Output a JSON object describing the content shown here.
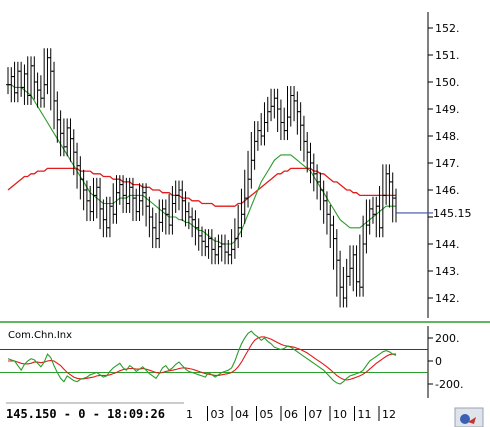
{
  "chart_data": [
    {
      "type": "ohlc",
      "current_value_label": "145.15",
      "y_ticks": [
        "152.",
        "151.",
        "150.",
        "149.",
        "148.",
        "147.",
        "146.",
        "145.",
        "144.",
        "143.",
        "142."
      ],
      "ylim": [
        141.3,
        152.6
      ],
      "x_ticks": [
        "1",
        "03",
        "04",
        "05",
        "06",
        "07",
        "10",
        "11",
        "12"
      ],
      "price_series": [
        149.9,
        150.2,
        149.6,
        150.4,
        149.8,
        150.3,
        149.5,
        150.6,
        150.0,
        149.7,
        149.4,
        149.9,
        150.9,
        150.4,
        149.3,
        148.6,
        148.1,
        147.6,
        148.3,
        147.9,
        147.4,
        146.9,
        146.4,
        146.0,
        145.6,
        145.2,
        145.8,
        146.1,
        145.3,
        144.9,
        144.6,
        145.4,
        145.1,
        145.9,
        146.2,
        145.8,
        145.5,
        146.1,
        145.7,
        145.2,
        145.6,
        145.9,
        145.4,
        145.0,
        144.6,
        144.2,
        144.8,
        145.3,
        145.1,
        144.7,
        145.5,
        145.8,
        146.0,
        145.6,
        145.2,
        145.0,
        144.9,
        144.6,
        144.3,
        144.1,
        143.9,
        144.2,
        143.8,
        143.6,
        143.9,
        144.0,
        143.7,
        143.6,
        143.8,
        144.2,
        144.6,
        145.1,
        145.7,
        146.4,
        147.1,
        147.8,
        148.2,
        148.0,
        148.5,
        148.9,
        149.1,
        149.4,
        149.0,
        148.5,
        148.2,
        148.7,
        149.5,
        149.3,
        148.9,
        148.4,
        147.8,
        147.4,
        147.0,
        146.6,
        146.3,
        146.0,
        145.6,
        145.1,
        144.7,
        144.2,
        143.4,
        142.4,
        142.0,
        142.8,
        143.1,
        143.6,
        142.6,
        142.4,
        144.0,
        144.7,
        145.3,
        145.1,
        145.4,
        144.6,
        145.8,
        146.6,
        146.3,
        145.7,
        145.15
      ],
      "ma_fast": [
        149.9,
        149.9,
        149.8,
        149.8,
        149.8,
        149.7,
        149.6,
        149.5,
        149.3,
        149.1,
        148.9,
        148.7,
        148.5,
        148.3,
        148.1,
        147.9,
        147.7,
        147.5,
        147.3,
        147.1,
        146.9,
        146.7,
        146.5,
        146.3,
        146.1,
        145.9,
        145.8,
        145.7,
        145.6,
        145.5,
        145.5,
        145.5,
        145.5,
        145.6,
        145.7,
        145.7,
        145.7,
        145.8,
        145.8,
        145.8,
        145.8,
        145.8,
        145.7,
        145.6,
        145.5,
        145.4,
        145.3,
        145.2,
        145.1,
        145.0,
        145.0,
        145.0,
        144.9,
        144.9,
        144.8,
        144.8,
        144.7,
        144.6,
        144.5,
        144.5,
        144.4,
        144.3,
        144.2,
        144.1,
        144.1,
        144.0,
        144.0,
        144.0,
        144.0,
        144.1,
        144.3,
        144.5,
        144.8,
        145.1,
        145.4,
        145.7,
        146.0,
        146.3,
        146.5,
        146.7,
        146.9,
        147.1,
        147.2,
        147.3,
        147.3,
        147.3,
        147.3,
        147.2,
        147.1,
        147.0,
        146.9,
        146.8,
        146.7,
        146.5,
        146.3,
        146.1,
        145.9,
        145.7,
        145.5,
        145.3,
        145.1,
        144.9,
        144.8,
        144.7,
        144.6,
        144.6,
        144.6,
        144.6,
        144.7,
        144.8,
        144.9,
        145.0,
        145.1,
        145.2,
        145.3,
        145.4,
        145.4,
        145.4,
        145.4
      ],
      "ma_slow": [
        146.0,
        146.1,
        146.2,
        146.3,
        146.4,
        146.5,
        146.5,
        146.6,
        146.6,
        146.7,
        146.7,
        146.7,
        146.8,
        146.8,
        146.8,
        146.8,
        146.8,
        146.8,
        146.8,
        146.8,
        146.8,
        146.8,
        146.7,
        146.7,
        146.7,
        146.7,
        146.6,
        146.6,
        146.6,
        146.5,
        146.5,
        146.5,
        146.4,
        146.4,
        146.4,
        146.3,
        146.3,
        146.3,
        146.2,
        146.2,
        146.2,
        146.1,
        146.1,
        146.1,
        146.0,
        146.0,
        146.0,
        145.9,
        145.9,
        145.9,
        145.8,
        145.8,
        145.8,
        145.7,
        145.7,
        145.7,
        145.6,
        145.6,
        145.6,
        145.5,
        145.5,
        145.5,
        145.5,
        145.4,
        145.4,
        145.4,
        145.4,
        145.4,
        145.4,
        145.4,
        145.5,
        145.5,
        145.6,
        145.7,
        145.8,
        145.9,
        146.0,
        146.1,
        146.2,
        146.3,
        146.4,
        146.5,
        146.6,
        146.6,
        146.7,
        146.7,
        146.8,
        146.8,
        146.8,
        146.8,
        146.8,
        146.8,
        146.8,
        146.7,
        146.7,
        146.6,
        146.6,
        146.5,
        146.4,
        146.3,
        146.3,
        146.2,
        146.1,
        146.0,
        146.0,
        145.9,
        145.9,
        145.8,
        145.8,
        145.8,
        145.8,
        145.8,
        145.8,
        145.8,
        145.8,
        145.8,
        145.8,
        145.8,
        145.8
      ],
      "colors": {
        "fast_ma": "#2a9d2a",
        "slow_ma": "#e21b1b",
        "price": "#000000",
        "current_marker": "#3a4fb0"
      }
    },
    {
      "type": "line",
      "indicator_name": "Com.Chn.Inx",
      "y_ticks": [
        "200.",
        "0",
        "-200."
      ],
      "ylim": [
        -280,
        280
      ],
      "levels": [
        100,
        -100
      ],
      "cci": [
        20,
        10,
        0,
        -40,
        -80,
        -30,
        0,
        20,
        10,
        -20,
        -50,
        -10,
        60,
        30,
        -40,
        -100,
        -150,
        -180,
        -130,
        -150,
        -170,
        -180,
        -160,
        -150,
        -140,
        -120,
        -110,
        -100,
        -120,
        -140,
        -130,
        -90,
        -60,
        -40,
        -20,
        -60,
        -80,
        -40,
        -60,
        -90,
        -70,
        -50,
        -80,
        -110,
        -130,
        -150,
        -110,
        -60,
        -40,
        -80,
        -60,
        -30,
        -10,
        -40,
        -70,
        -90,
        -100,
        -110,
        -120,
        -130,
        -140,
        -100,
        -120,
        -140,
        -120,
        -100,
        -90,
        -80,
        -60,
        0,
        80,
        150,
        200,
        240,
        260,
        230,
        210,
        180,
        200,
        170,
        150,
        120,
        110,
        100,
        110,
        130,
        120,
        100,
        80,
        60,
        40,
        20,
        0,
        -20,
        -40,
        -60,
        -80,
        -110,
        -140,
        -170,
        -190,
        -200,
        -180,
        -150,
        -130,
        -120,
        -110,
        -100,
        -80,
        -40,
        0,
        20,
        40,
        60,
        80,
        90,
        80,
        60,
        50
      ],
      "cci_signal": [
        0,
        0,
        0,
        -10,
        -20,
        -25,
        -25,
        -20,
        -10,
        -10,
        -15,
        -10,
        0,
        5,
        0,
        -20,
        -40,
        -70,
        -100,
        -120,
        -140,
        -150,
        -155,
        -155,
        -150,
        -145,
        -140,
        -130,
        -125,
        -125,
        -125,
        -120,
        -110,
        -100,
        -85,
        -75,
        -70,
        -65,
        -65,
        -70,
        -70,
        -65,
        -70,
        -80,
        -90,
        -100,
        -105,
        -100,
        -90,
        -85,
        -80,
        -75,
        -65,
        -60,
        -60,
        -65,
        -70,
        -80,
        -90,
        -100,
        -110,
        -115,
        -120,
        -125,
        -125,
        -120,
        -115,
        -110,
        -100,
        -80,
        -50,
        -10,
        40,
        90,
        140,
        180,
        200,
        210,
        210,
        200,
        190,
        175,
        160,
        145,
        135,
        130,
        125,
        120,
        110,
        100,
        85,
        70,
        50,
        30,
        10,
        -10,
        -30,
        -50,
        -75,
        -100,
        -125,
        -145,
        -160,
        -165,
        -160,
        -150,
        -140,
        -130,
        -115,
        -95,
        -70,
        -45,
        -20,
        0,
        20,
        40,
        55,
        60,
        60
      ],
      "colors": {
        "cci": "#2a9d2a",
        "signal": "#e21b1b",
        "upper_level": "#8b1a1a",
        "lower_level": "#2a9d2a"
      }
    }
  ],
  "status_bar": {
    "text": "145.150 - 0 - 18:09:26"
  }
}
